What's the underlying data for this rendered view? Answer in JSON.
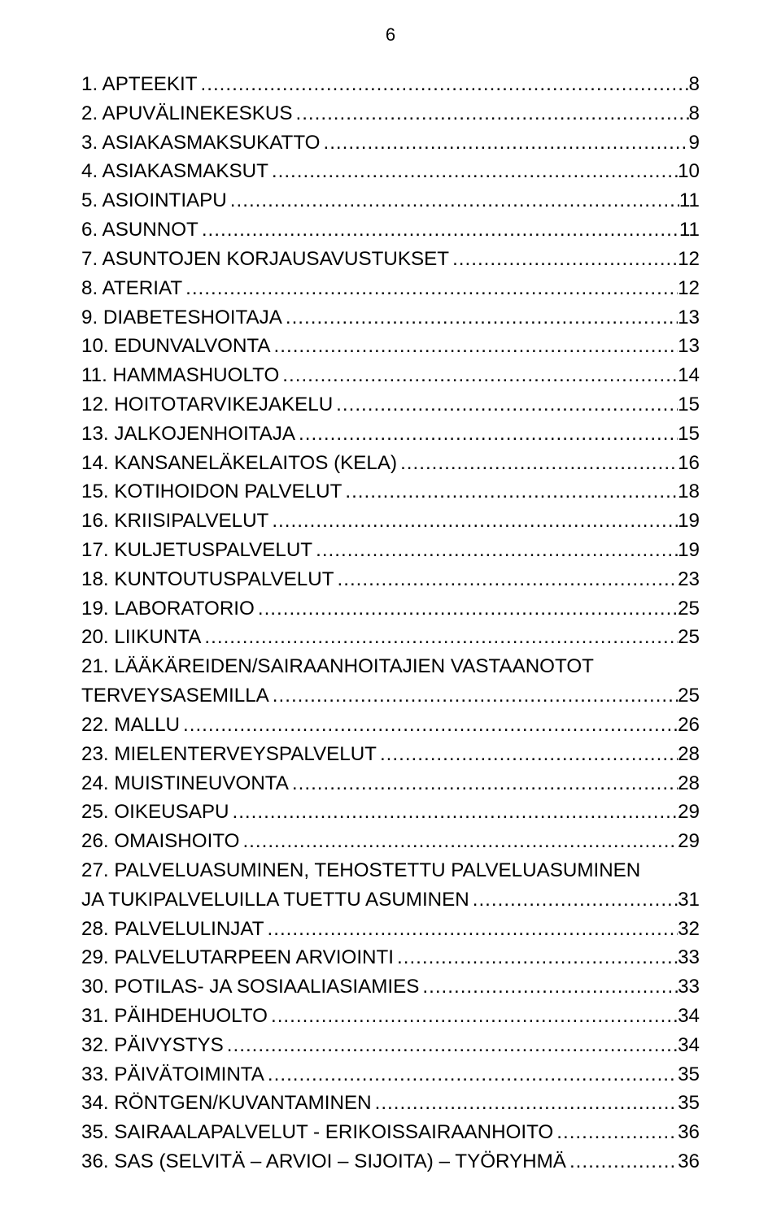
{
  "page_number": "6",
  "toc": [
    {
      "n": "1",
      "title": "APTEEKIT",
      "page": "8"
    },
    {
      "n": "2",
      "title": "APUVÄLINEKESKUS",
      "page": "8"
    },
    {
      "n": "3",
      "title": "ASIAKASMAKSUKATTO",
      "page": "9"
    },
    {
      "n": "4",
      "title": "ASIAKASMAKSUT",
      "page": "10"
    },
    {
      "n": "5",
      "title": "ASIOINTIAPU",
      "page": "11"
    },
    {
      "n": "6",
      "title": "ASUNNOT",
      "page": "11"
    },
    {
      "n": "7",
      "title": "ASUNTOJEN KORJAUSAVUSTUKSET",
      "page": "12"
    },
    {
      "n": "8",
      "title": "ATERIAT",
      "page": "12"
    },
    {
      "n": "9",
      "title": "DIABETESHOITAJA",
      "page": "13"
    },
    {
      "n": "10",
      "title": "EDUNVALVONTA",
      "page": "13"
    },
    {
      "n": "11",
      "title": "HAMMASHUOLTO",
      "page": "14"
    },
    {
      "n": "12",
      "title": "HOITOTARVIKEJAKELU",
      "page": "15"
    },
    {
      "n": "13",
      "title": "JALKOJENHOITAJA",
      "page": "15"
    },
    {
      "n": "14",
      "title": "KANSANELÄKELAITOS (KELA)",
      "page": "16"
    },
    {
      "n": "15",
      "title": "KOTIHOIDON PALVELUT",
      "page": "18"
    },
    {
      "n": "16",
      "title": "KRIISIPALVELUT",
      "page": "19"
    },
    {
      "n": "17",
      "title": "KULJETUSPALVELUT",
      "page": "19"
    },
    {
      "n": "18",
      "title": "KUNTOUTUSPALVELUT",
      "page": "23"
    },
    {
      "n": "19",
      "title": "LABORATORIO",
      "page": "25"
    },
    {
      "n": "20",
      "title": "LIIKUNTA",
      "page": "25"
    },
    {
      "n": "21",
      "title_line1": "LÄÄKÄREIDEN/SAIRAANHOITAJIEN VASTAANOTOT",
      "title_line2": "TERVEYSASEMILLA",
      "page": "25",
      "multiline": true
    },
    {
      "n": "22",
      "title": "MALLU",
      "page": "26"
    },
    {
      "n": "23",
      "title": "MIELENTERVEYSPALVELUT",
      "page": "28"
    },
    {
      "n": "24",
      "title": "MUISTINEUVONTA",
      "page": "28"
    },
    {
      "n": "25",
      "title": "OIKEUSAPU",
      "page": "29"
    },
    {
      "n": "26",
      "title": "OMAISHOITO",
      "page": "29"
    },
    {
      "n": "27",
      "title_line1": "PALVELUASUMINEN, TEHOSTETTU PALVELUASUMINEN",
      "title_line2": "JA TUKIPALVELUILLA TUETTU ASUMINEN",
      "page": "31",
      "multiline": true
    },
    {
      "n": "28",
      "title": "PALVELULINJAT",
      "page": "32"
    },
    {
      "n": "29",
      "title": "PALVELUTARPEEN ARVIOINTI",
      "page": "33"
    },
    {
      "n": "30",
      "title": "POTILAS- JA SOSIAALIASIAMIES",
      "page": "33"
    },
    {
      "n": "31",
      "title": "PÄIHDEHUOLTO",
      "page": "34"
    },
    {
      "n": "32",
      "title": "PÄIVYSTYS",
      "page": "34"
    },
    {
      "n": "33",
      "title": "PÄIVÄTOIMINTA",
      "page": "35"
    },
    {
      "n": "34",
      "title": "RÖNTGEN/KUVANTAMINEN",
      "page": "35"
    },
    {
      "n": "35",
      "title": "SAIRAALAPALVELUT - ERIKOISSAIRAANHOITO",
      "page": "36"
    },
    {
      "n": "36",
      "title": "SAS (SELVITÄ – ARVIOI – SIJOITA) – TYÖRYHMÄ",
      "page": "36"
    }
  ]
}
